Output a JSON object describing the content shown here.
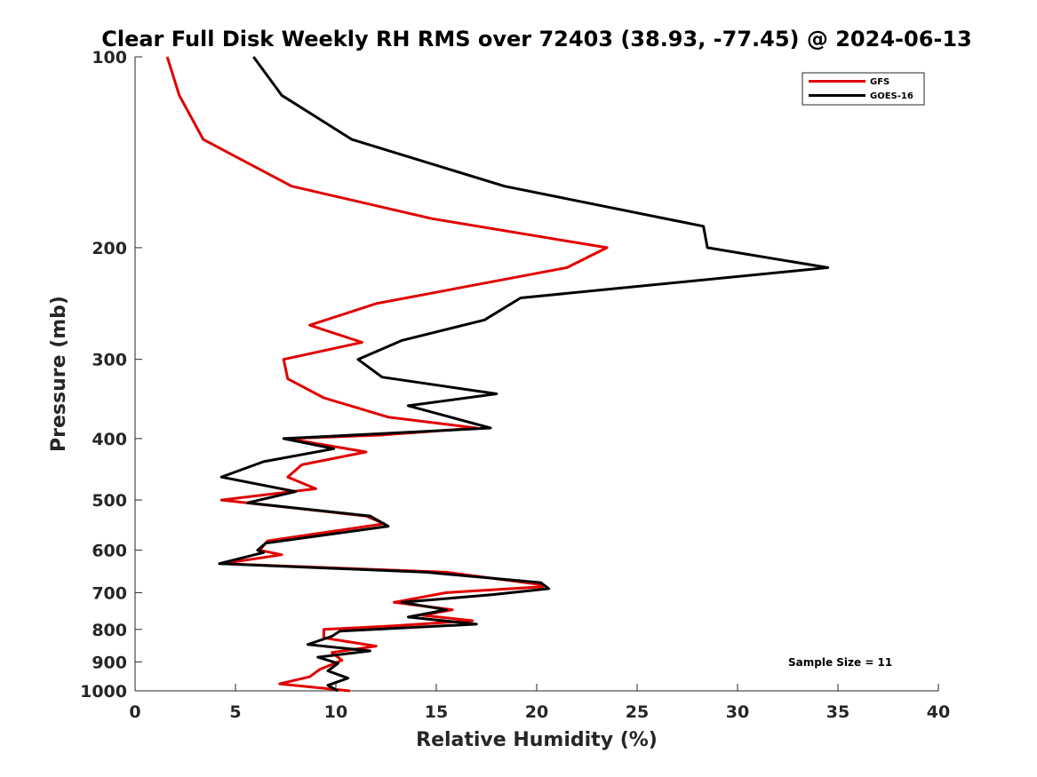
{
  "chart_data": {
    "type": "line",
    "title": "Clear Full Disk Weekly RH RMS over 72403 (38.93, -77.45) @ 2024-06-13",
    "xlabel": "Relative Humidity (%)",
    "ylabel": "Pressure (mb)",
    "xlim": [
      0,
      40
    ],
    "ylim": [
      1000,
      100
    ],
    "yscale": "log",
    "xticks": [
      0,
      5,
      10,
      15,
      20,
      25,
      30,
      35,
      40
    ],
    "yticks": [
      100,
      200,
      300,
      400,
      500,
      600,
      700,
      800,
      900,
      1000
    ],
    "grid": false,
    "legend": "top-right",
    "annotation": "Sample Size = 11",
    "series": [
      {
        "name": "GFS",
        "color": "#e00000",
        "points": [
          [
            1.6,
            100
          ],
          [
            2.2,
            115
          ],
          [
            3.4,
            135
          ],
          [
            7.8,
            160
          ],
          [
            14.8,
            180
          ],
          [
            23.5,
            200
          ],
          [
            21.5,
            215
          ],
          [
            12.0,
            245
          ],
          [
            8.7,
            265
          ],
          [
            11.3,
            282
          ],
          [
            7.4,
            300
          ],
          [
            7.6,
            322
          ],
          [
            9.4,
            345
          ],
          [
            12.6,
            370
          ],
          [
            17.0,
            385
          ],
          [
            12.2,
            395
          ],
          [
            7.6,
            400
          ],
          [
            11.5,
            420
          ],
          [
            8.3,
            440
          ],
          [
            7.6,
            460
          ],
          [
            9.0,
            480
          ],
          [
            4.3,
            500
          ],
          [
            11.5,
            530
          ],
          [
            12.4,
            545
          ],
          [
            6.6,
            580
          ],
          [
            6.2,
            600
          ],
          [
            7.3,
            610
          ],
          [
            5.8,
            620
          ],
          [
            4.3,
            630
          ],
          [
            15.5,
            650
          ],
          [
            20.2,
            680
          ],
          [
            20.3,
            685
          ],
          [
            15.5,
            700
          ],
          [
            12.9,
            725
          ],
          [
            15.8,
            745
          ],
          [
            14.3,
            760
          ],
          [
            16.8,
            775
          ],
          [
            12.8,
            790
          ],
          [
            9.4,
            800
          ],
          [
            9.4,
            825
          ],
          [
            12.0,
            850
          ],
          [
            9.8,
            870
          ],
          [
            10.3,
            895
          ],
          [
            9.2,
            925
          ],
          [
            8.7,
            950
          ],
          [
            7.2,
            975
          ],
          [
            10.7,
            1000
          ]
        ]
      },
      {
        "name": "GOES-16",
        "color": "#000000",
        "points": [
          [
            5.9,
            100
          ],
          [
            7.3,
            115
          ],
          [
            10.8,
            135
          ],
          [
            18.4,
            160
          ],
          [
            28.3,
            185
          ],
          [
            28.5,
            200
          ],
          [
            34.5,
            215
          ],
          [
            19.2,
            240
          ],
          [
            17.4,
            260
          ],
          [
            13.3,
            280
          ],
          [
            11.1,
            300
          ],
          [
            12.3,
            320
          ],
          [
            18.0,
            340
          ],
          [
            13.6,
            355
          ],
          [
            17.7,
            385
          ],
          [
            7.4,
            400
          ],
          [
            9.9,
            415
          ],
          [
            6.4,
            435
          ],
          [
            4.3,
            460
          ],
          [
            8.0,
            485
          ],
          [
            5.6,
            505
          ],
          [
            11.7,
            530
          ],
          [
            12.6,
            550
          ],
          [
            6.5,
            585
          ],
          [
            6.1,
            600
          ],
          [
            6.4,
            605
          ],
          [
            4.2,
            630
          ],
          [
            14.5,
            650
          ],
          [
            20.2,
            675
          ],
          [
            20.6,
            690
          ],
          [
            17.8,
            705
          ],
          [
            13.3,
            725
          ],
          [
            15.5,
            745
          ],
          [
            13.6,
            765
          ],
          [
            17.0,
            785
          ],
          [
            10.2,
            805
          ],
          [
            9.8,
            820
          ],
          [
            8.6,
            845
          ],
          [
            11.7,
            865
          ],
          [
            9.1,
            885
          ],
          [
            10.1,
            905
          ],
          [
            9.6,
            930
          ],
          [
            10.6,
            955
          ],
          [
            9.6,
            980
          ],
          [
            10.1,
            1000
          ]
        ]
      }
    ]
  }
}
